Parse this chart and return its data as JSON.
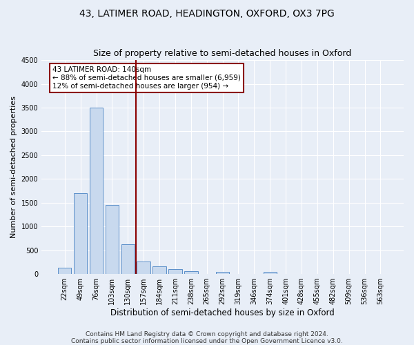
{
  "title": "43, LATIMER ROAD, HEADINGTON, OXFORD, OX3 7PG",
  "subtitle": "Size of property relative to semi-detached houses in Oxford",
  "xlabel": "Distribution of semi-detached houses by size in Oxford",
  "ylabel": "Number of semi-detached properties",
  "bin_labels": [
    "22sqm",
    "49sqm",
    "76sqm",
    "103sqm",
    "130sqm",
    "157sqm",
    "184sqm",
    "211sqm",
    "238sqm",
    "265sqm",
    "292sqm",
    "319sqm",
    "346sqm",
    "374sqm",
    "401sqm",
    "428sqm",
    "455sqm",
    "482sqm",
    "509sqm",
    "536sqm",
    "563sqm"
  ],
  "bar_heights": [
    140,
    1700,
    3500,
    1450,
    625,
    270,
    160,
    100,
    55,
    0,
    40,
    0,
    0,
    40,
    0,
    0,
    0,
    0,
    0,
    0,
    0
  ],
  "bar_color": "#c8d9ee",
  "bar_edge_color": "#5b8fc9",
  "vline_x": 4.5,
  "vline_color": "#8b0000",
  "annotation_text": "43 LATIMER ROAD: 140sqm\n← 88% of semi-detached houses are smaller (6,959)\n12% of semi-detached houses are larger (954) →",
  "annotation_box_color": "#ffffff",
  "annotation_box_edge": "#8b0000",
  "ylim": [
    0,
    4500
  ],
  "yticks": [
    0,
    500,
    1000,
    1500,
    2000,
    2500,
    3000,
    3500,
    4000,
    4500
  ],
  "bg_color": "#e8eef7",
  "footer_line1": "Contains HM Land Registry data © Crown copyright and database right 2024.",
  "footer_line2": "Contains public sector information licensed under the Open Government Licence v3.0.",
  "title_fontsize": 10,
  "subtitle_fontsize": 9,
  "ylabel_fontsize": 8,
  "xlabel_fontsize": 8.5,
  "footer_fontsize": 6.5,
  "tick_fontsize": 7,
  "annot_fontsize": 7.5
}
